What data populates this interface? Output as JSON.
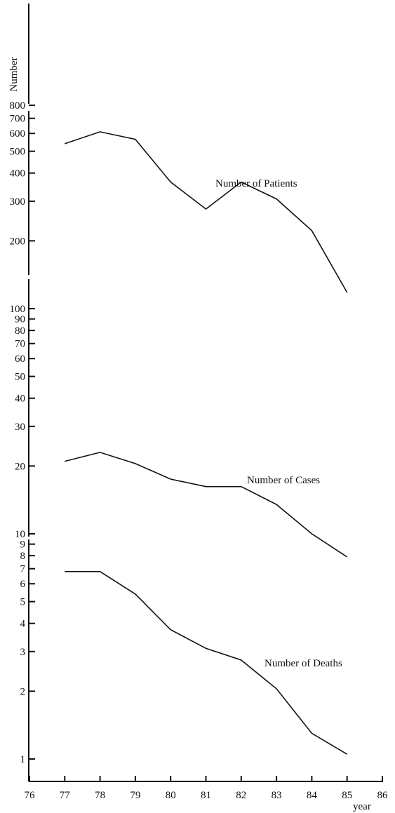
{
  "chart_data": {
    "type": "line",
    "title": "",
    "ylabel": "Number",
    "xlabel": "year",
    "y_scale": "log",
    "ylim": [
      1,
      800
    ],
    "xlim": [
      76,
      86
    ],
    "grid": false,
    "legend": "none (series labelled inline)",
    "line_color": "#111111",
    "x_ticks": [
      76,
      77,
      78,
      79,
      80,
      81,
      82,
      83,
      84,
      85,
      86
    ],
    "y_ticks": [
      1,
      2,
      3,
      4,
      5,
      6,
      7,
      8,
      9,
      10,
      20,
      30,
      40,
      50,
      60,
      70,
      80,
      90,
      100,
      200,
      300,
      400,
      500,
      600,
      700,
      800
    ],
    "x": [
      77,
      78,
      79,
      80,
      81,
      82,
      83,
      84,
      85
    ],
    "series": [
      {
        "name": "Number of Patients",
        "values": [
          540,
          610,
          565,
          365,
          277,
          365,
          307,
          222,
          118
        ]
      },
      {
        "name": "Number of Cases",
        "values": [
          21,
          23,
          20.5,
          17.5,
          16.2,
          16.2,
          13.5,
          10,
          7.9
        ]
      },
      {
        "name": "Number of Deaths",
        "values": [
          6.8,
          6.8,
          5.4,
          3.75,
          3.1,
          2.75,
          2.05,
          1.3,
          1.05
        ]
      }
    ]
  }
}
